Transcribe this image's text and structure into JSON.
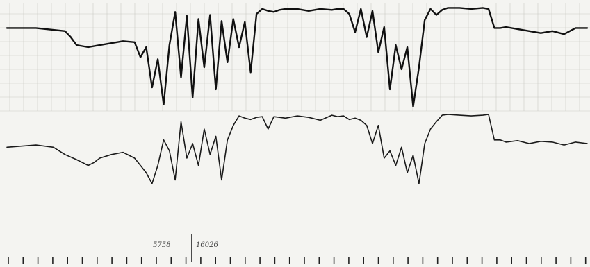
{
  "chart_data": [
    {
      "type": "line",
      "trace": "upper",
      "title": "",
      "xlabel": "",
      "ylabel": "",
      "xlim": [
        0,
        100
      ],
      "ylim": [
        0,
        100
      ],
      "grid": true,
      "series": [
        {
          "x": [
            0,
            5,
            10,
            11,
            12,
            13,
            14,
            16,
            18,
            20,
            22,
            23,
            24,
            25,
            26,
            27,
            28,
            29,
            30,
            31,
            32,
            33,
            34,
            35,
            36,
            37,
            38,
            39,
            40,
            41,
            42,
            43,
            44,
            45,
            46,
            47,
            48,
            50,
            52,
            54,
            56,
            57,
            58,
            59,
            60,
            61,
            62,
            63,
            64,
            65,
            66,
            67,
            68,
            69,
            70,
            71,
            72,
            73,
            74,
            75,
            76,
            78,
            80,
            82,
            83,
            84,
            85,
            86,
            88,
            90,
            92,
            94,
            96,
            98,
            100
          ],
          "values": [
            79,
            79,
            76,
            70,
            62,
            61,
            60,
            62,
            64,
            66,
            65,
            50,
            60,
            20,
            48,
            3,
            62,
            95,
            30,
            91,
            10,
            88,
            40,
            92,
            18,
            86,
            45,
            88,
            60,
            85,
            35,
            93,
            98,
            96,
            95,
            97,
            98,
            98,
            96,
            98,
            97,
            98,
            98,
            93,
            75,
            98,
            70,
            96,
            55,
            80,
            18,
            62,
            38,
            60,
            1,
            40,
            87,
            98,
            92,
            97,
            99,
            99,
            98,
            99,
            98,
            79,
            79,
            80,
            78,
            76,
            74,
            76,
            73,
            79,
            79
          ]
        }
      ]
    },
    {
      "type": "line",
      "trace": "lower",
      "title": "",
      "xlabel": "",
      "ylabel": "",
      "xlim": [
        0,
        100
      ],
      "ylim": [
        0,
        100
      ],
      "grid": false,
      "series": [
        {
          "x": [
            0,
            5,
            8,
            10,
            12,
            14,
            15,
            16,
            18,
            20,
            22,
            23,
            24,
            25,
            26,
            27,
            28,
            29,
            30,
            31,
            32,
            33,
            34,
            35,
            36,
            37,
            38,
            39,
            40,
            41,
            42,
            43,
            44,
            45,
            46,
            47,
            48,
            50,
            52,
            54,
            56,
            57,
            58,
            59,
            60,
            61,
            62,
            63,
            64,
            65,
            66,
            67,
            68,
            69,
            70,
            71,
            72,
            73,
            74,
            75,
            76,
            78,
            80,
            82,
            83,
            84,
            85,
            86,
            88,
            90,
            92,
            94,
            96,
            98,
            100
          ],
          "values": [
            55,
            58,
            55,
            45,
            38,
            30,
            34,
            40,
            45,
            48,
            40,
            30,
            20,
            5,
            30,
            65,
            50,
            10,
            90,
            40,
            60,
            30,
            80,
            45,
            70,
            10,
            65,
            85,
            98,
            95,
            93,
            96,
            97,
            80,
            97,
            96,
            95,
            98,
            96,
            92,
            99,
            97,
            98,
            93,
            95,
            92,
            85,
            60,
            85,
            40,
            50,
            30,
            55,
            20,
            44,
            5,
            60,
            80,
            90,
            99,
            100,
            99,
            98,
            99,
            100,
            65,
            65,
            62,
            64,
            60,
            63,
            62,
            58,
            62,
            60
          ]
        }
      ]
    }
  ],
  "annotations": {
    "note_left": "5758",
    "note_right": "16026"
  }
}
